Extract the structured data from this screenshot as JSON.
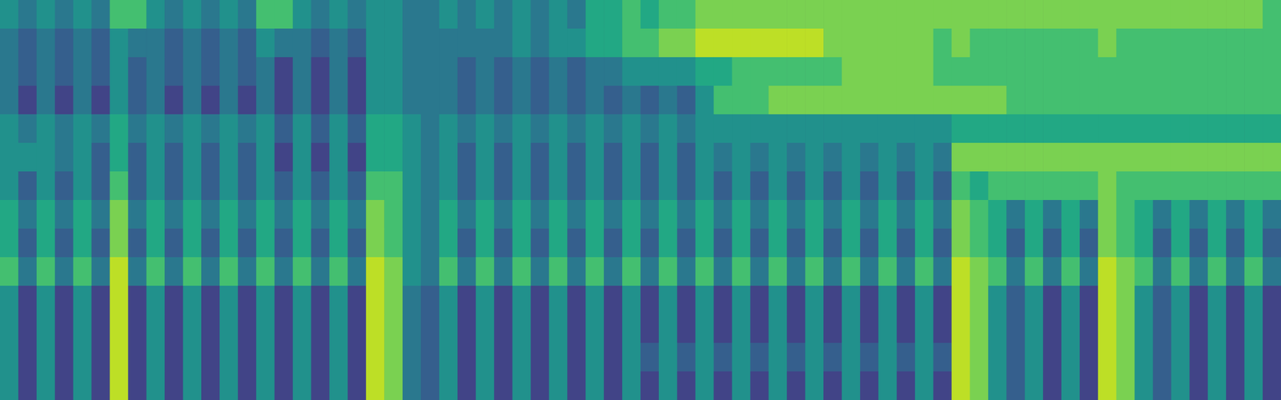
{
  "chart_data": {
    "type": "heatmap",
    "color": "viridis",
    "tick_labels": false,
    "zlim": [
      0,
      1
    ],
    "cells": [
      [
        0.5,
        0.4,
        0.5,
        0.4,
        0.5,
        0.4,
        0.7,
        0.7,
        0.5,
        0.4,
        0.5,
        0.4,
        0.5,
        0.4,
        0.7,
        0.7,
        0.5,
        0.4,
        0.5,
        0.4,
        0.5,
        0.5,
        0.4,
        0.4,
        0.5,
        0.4,
        0.5,
        0.4,
        0.5,
        0.4,
        0.5,
        0.4,
        0.6,
        0.6,
        0.7,
        0.6,
        0.7,
        0.7,
        0.8,
        0.8,
        0.8,
        0.8,
        0.8,
        0.8,
        0.8,
        0.8,
        0.8,
        0.8,
        0.8,
        0.8,
        0.8,
        0.8,
        0.8,
        0.8,
        0.8,
        0.8,
        0.8,
        0.8,
        0.8,
        0.8,
        0.8,
        0.8,
        0.8,
        0.8,
        0.8,
        0.8,
        0.8,
        0.8,
        0.8,
        0.7
      ],
      [
        0.4,
        0.3,
        0.4,
        0.3,
        0.4,
        0.3,
        0.5,
        0.4,
        0.4,
        0.3,
        0.4,
        0.3,
        0.4,
        0.3,
        0.5,
        0.4,
        0.4,
        0.3,
        0.4,
        0.3,
        0.5,
        0.5,
        0.4,
        0.4,
        0.4,
        0.4,
        0.4,
        0.4,
        0.5,
        0.4,
        0.5,
        0.5,
        0.6,
        0.6,
        0.7,
        0.7,
        0.8,
        0.8,
        0.9,
        0.9,
        0.9,
        0.9,
        0.9,
        0.9,
        0.9,
        0.8,
        0.8,
        0.8,
        0.8,
        0.8,
        0.8,
        0.7,
        0.8,
        0.7,
        0.7,
        0.7,
        0.7,
        0.7,
        0.7,
        0.7,
        0.8,
        0.7,
        0.7,
        0.7,
        0.7,
        0.7,
        0.7,
        0.7,
        0.7,
        0.7
      ],
      [
        0.4,
        0.3,
        0.4,
        0.3,
        0.4,
        0.3,
        0.5,
        0.3,
        0.4,
        0.3,
        0.4,
        0.3,
        0.4,
        0.3,
        0.4,
        0.2,
        0.4,
        0.2,
        0.4,
        0.2,
        0.5,
        0.5,
        0.4,
        0.4,
        0.4,
        0.3,
        0.4,
        0.3,
        0.4,
        0.3,
        0.4,
        0.3,
        0.4,
        0.4,
        0.5,
        0.5,
        0.5,
        0.5,
        0.6,
        0.6,
        0.7,
        0.7,
        0.7,
        0.7,
        0.7,
        0.7,
        0.8,
        0.8,
        0.8,
        0.8,
        0.8,
        0.7,
        0.7,
        0.7,
        0.7,
        0.7,
        0.7,
        0.7,
        0.7,
        0.7,
        0.7,
        0.7,
        0.7,
        0.7,
        0.7,
        0.7,
        0.7,
        0.7,
        0.7,
        0.7
      ],
      [
        0.4,
        0.2,
        0.4,
        0.2,
        0.4,
        0.2,
        0.5,
        0.3,
        0.4,
        0.2,
        0.4,
        0.2,
        0.4,
        0.2,
        0.4,
        0.2,
        0.4,
        0.2,
        0.4,
        0.2,
        0.5,
        0.5,
        0.4,
        0.4,
        0.4,
        0.3,
        0.4,
        0.3,
        0.4,
        0.3,
        0.4,
        0.3,
        0.4,
        0.3,
        0.4,
        0.3,
        0.4,
        0.3,
        0.5,
        0.7,
        0.7,
        0.7,
        0.8,
        0.8,
        0.8,
        0.8,
        0.8,
        0.8,
        0.8,
        0.8,
        0.8,
        0.8,
        0.8,
        0.8,
        0.8,
        0.7,
        0.7,
        0.7,
        0.7,
        0.7,
        0.7,
        0.7,
        0.7,
        0.7,
        0.7,
        0.7,
        0.7,
        0.7,
        0.7,
        0.7
      ],
      [
        0.5,
        0.4,
        0.5,
        0.4,
        0.5,
        0.4,
        0.6,
        0.4,
        0.5,
        0.4,
        0.5,
        0.4,
        0.5,
        0.4,
        0.5,
        0.3,
        0.5,
        0.3,
        0.5,
        0.3,
        0.6,
        0.6,
        0.5,
        0.4,
        0.5,
        0.4,
        0.5,
        0.4,
        0.5,
        0.4,
        0.5,
        0.4,
        0.5,
        0.4,
        0.5,
        0.4,
        0.5,
        0.4,
        0.5,
        0.5,
        0.5,
        0.5,
        0.5,
        0.5,
        0.5,
        0.5,
        0.5,
        0.5,
        0.5,
        0.5,
        0.5,
        0.5,
        0.6,
        0.6,
        0.6,
        0.6,
        0.6,
        0.6,
        0.6,
        0.6,
        0.6,
        0.6,
        0.6,
        0.6,
        0.6,
        0.6,
        0.6,
        0.6,
        0.6,
        0.6
      ],
      [
        0.5,
        0.5,
        0.5,
        0.4,
        0.5,
        0.3,
        0.6,
        0.3,
        0.5,
        0.3,
        0.5,
        0.3,
        0.5,
        0.3,
        0.5,
        0.2,
        0.5,
        0.2,
        0.5,
        0.2,
        0.6,
        0.6,
        0.5,
        0.4,
        0.5,
        0.3,
        0.5,
        0.3,
        0.5,
        0.3,
        0.5,
        0.3,
        0.5,
        0.3,
        0.5,
        0.3,
        0.5,
        0.3,
        0.5,
        0.4,
        0.5,
        0.4,
        0.5,
        0.4,
        0.5,
        0.4,
        0.5,
        0.4,
        0.5,
        0.4,
        0.5,
        0.4,
        0.8,
        0.8,
        0.8,
        0.8,
        0.8,
        0.8,
        0.8,
        0.8,
        0.8,
        0.8,
        0.8,
        0.8,
        0.8,
        0.8,
        0.8,
        0.8,
        0.8,
        0.8
      ],
      [
        0.5,
        0.3,
        0.5,
        0.3,
        0.5,
        0.3,
        0.7,
        0.3,
        0.5,
        0.3,
        0.5,
        0.3,
        0.5,
        0.3,
        0.5,
        0.3,
        0.5,
        0.3,
        0.5,
        0.3,
        0.7,
        0.7,
        0.5,
        0.4,
        0.5,
        0.3,
        0.5,
        0.3,
        0.5,
        0.3,
        0.5,
        0.3,
        0.5,
        0.3,
        0.5,
        0.3,
        0.5,
        0.3,
        0.5,
        0.3,
        0.5,
        0.3,
        0.5,
        0.3,
        0.5,
        0.3,
        0.5,
        0.3,
        0.5,
        0.3,
        0.5,
        0.3,
        0.7,
        0.6,
        0.7,
        0.7,
        0.7,
        0.7,
        0.7,
        0.7,
        0.8,
        0.7,
        0.7,
        0.7,
        0.7,
        0.7,
        0.7,
        0.7,
        0.7,
        0.7
      ],
      [
        0.6,
        0.4,
        0.6,
        0.4,
        0.6,
        0.4,
        0.8,
        0.4,
        0.6,
        0.4,
        0.6,
        0.4,
        0.6,
        0.4,
        0.6,
        0.4,
        0.6,
        0.4,
        0.6,
        0.4,
        0.8,
        0.7,
        0.5,
        0.4,
        0.6,
        0.4,
        0.6,
        0.4,
        0.6,
        0.4,
        0.6,
        0.4,
        0.6,
        0.4,
        0.6,
        0.4,
        0.6,
        0.4,
        0.6,
        0.4,
        0.6,
        0.4,
        0.6,
        0.4,
        0.6,
        0.4,
        0.6,
        0.4,
        0.6,
        0.4,
        0.6,
        0.4,
        0.8,
        0.7,
        0.6,
        0.4,
        0.6,
        0.4,
        0.6,
        0.4,
        0.8,
        0.7,
        0.6,
        0.4,
        0.6,
        0.4,
        0.6,
        0.4,
        0.6,
        0.4
      ],
      [
        0.6,
        0.3,
        0.6,
        0.3,
        0.6,
        0.3,
        0.8,
        0.3,
        0.6,
        0.3,
        0.6,
        0.3,
        0.6,
        0.3,
        0.6,
        0.3,
        0.6,
        0.3,
        0.6,
        0.3,
        0.8,
        0.7,
        0.5,
        0.4,
        0.6,
        0.3,
        0.6,
        0.3,
        0.6,
        0.3,
        0.6,
        0.3,
        0.6,
        0.3,
        0.6,
        0.3,
        0.6,
        0.3,
        0.6,
        0.3,
        0.6,
        0.3,
        0.6,
        0.3,
        0.6,
        0.3,
        0.6,
        0.3,
        0.6,
        0.3,
        0.6,
        0.3,
        0.8,
        0.7,
        0.6,
        0.3,
        0.6,
        0.3,
        0.6,
        0.3,
        0.8,
        0.7,
        0.6,
        0.3,
        0.6,
        0.3,
        0.6,
        0.3,
        0.6,
        0.3
      ],
      [
        0.7,
        0.4,
        0.7,
        0.4,
        0.7,
        0.4,
        0.9,
        0.4,
        0.7,
        0.4,
        0.7,
        0.4,
        0.7,
        0.4,
        0.7,
        0.4,
        0.7,
        0.4,
        0.7,
        0.4,
        0.9,
        0.8,
        0.5,
        0.4,
        0.7,
        0.4,
        0.7,
        0.4,
        0.7,
        0.4,
        0.7,
        0.4,
        0.7,
        0.4,
        0.7,
        0.4,
        0.7,
        0.4,
        0.7,
        0.4,
        0.7,
        0.4,
        0.7,
        0.4,
        0.7,
        0.4,
        0.7,
        0.4,
        0.7,
        0.4,
        0.7,
        0.4,
        0.9,
        0.8,
        0.7,
        0.4,
        0.7,
        0.4,
        0.7,
        0.4,
        0.9,
        0.8,
        0.7,
        0.4,
        0.7,
        0.4,
        0.7,
        0.4,
        0.7,
        0.4
      ],
      [
        0.5,
        0.2,
        0.5,
        0.2,
        0.5,
        0.2,
        0.9,
        0.2,
        0.5,
        0.2,
        0.5,
        0.2,
        0.5,
        0.2,
        0.5,
        0.2,
        0.5,
        0.2,
        0.5,
        0.2,
        0.9,
        0.8,
        0.4,
        0.3,
        0.5,
        0.2,
        0.5,
        0.2,
        0.5,
        0.2,
        0.5,
        0.2,
        0.5,
        0.2,
        0.5,
        0.2,
        0.5,
        0.2,
        0.5,
        0.2,
        0.5,
        0.2,
        0.5,
        0.2,
        0.5,
        0.2,
        0.5,
        0.2,
        0.5,
        0.2,
        0.5,
        0.2,
        0.9,
        0.8,
        0.5,
        0.3,
        0.5,
        0.2,
        0.5,
        0.2,
        0.9,
        0.8,
        0.5,
        0.3,
        0.5,
        0.2,
        0.5,
        0.2,
        0.5,
        0.2
      ],
      [
        0.5,
        0.2,
        0.5,
        0.2,
        0.5,
        0.2,
        0.9,
        0.2,
        0.5,
        0.2,
        0.5,
        0.2,
        0.5,
        0.2,
        0.5,
        0.2,
        0.5,
        0.2,
        0.5,
        0.2,
        0.9,
        0.8,
        0.4,
        0.3,
        0.5,
        0.2,
        0.5,
        0.2,
        0.5,
        0.2,
        0.5,
        0.2,
        0.5,
        0.2,
        0.5,
        0.2,
        0.5,
        0.2,
        0.5,
        0.2,
        0.5,
        0.2,
        0.5,
        0.2,
        0.5,
        0.2,
        0.5,
        0.2,
        0.5,
        0.2,
        0.5,
        0.2,
        0.9,
        0.8,
        0.5,
        0.3,
        0.5,
        0.2,
        0.5,
        0.2,
        0.9,
        0.8,
        0.5,
        0.3,
        0.5,
        0.2,
        0.5,
        0.2,
        0.5,
        0.2
      ],
      [
        0.5,
        0.2,
        0.5,
        0.2,
        0.5,
        0.2,
        0.9,
        0.2,
        0.5,
        0.2,
        0.5,
        0.2,
        0.5,
        0.2,
        0.5,
        0.2,
        0.5,
        0.2,
        0.5,
        0.2,
        0.9,
        0.8,
        0.4,
        0.3,
        0.5,
        0.2,
        0.5,
        0.2,
        0.5,
        0.2,
        0.5,
        0.2,
        0.5,
        0.2,
        0.5,
        0.3,
        0.5,
        0.3,
        0.5,
        0.3,
        0.5,
        0.3,
        0.5,
        0.3,
        0.5,
        0.3,
        0.5,
        0.3,
        0.5,
        0.3,
        0.5,
        0.3,
        0.9,
        0.8,
        0.5,
        0.3,
        0.5,
        0.2,
        0.5,
        0.2,
        0.9,
        0.8,
        0.5,
        0.3,
        0.5,
        0.2,
        0.5,
        0.2,
        0.5,
        0.2
      ],
      [
        0.5,
        0.2,
        0.5,
        0.2,
        0.5,
        0.2,
        0.9,
        0.2,
        0.5,
        0.2,
        0.5,
        0.2,
        0.5,
        0.2,
        0.5,
        0.2,
        0.5,
        0.2,
        0.5,
        0.2,
        0.9,
        0.8,
        0.4,
        0.3,
        0.5,
        0.2,
        0.5,
        0.2,
        0.5,
        0.2,
        0.5,
        0.2,
        0.5,
        0.2,
        0.5,
        0.2,
        0.5,
        0.2,
        0.5,
        0.2,
        0.5,
        0.2,
        0.5,
        0.2,
        0.5,
        0.2,
        0.5,
        0.2,
        0.5,
        0.2,
        0.5,
        0.2,
        0.9,
        0.8,
        0.5,
        0.3,
        0.5,
        0.2,
        0.5,
        0.2,
        0.9,
        0.8,
        0.5,
        0.3,
        0.5,
        0.2,
        0.5,
        0.2,
        0.5,
        0.2
      ]
    ]
  }
}
